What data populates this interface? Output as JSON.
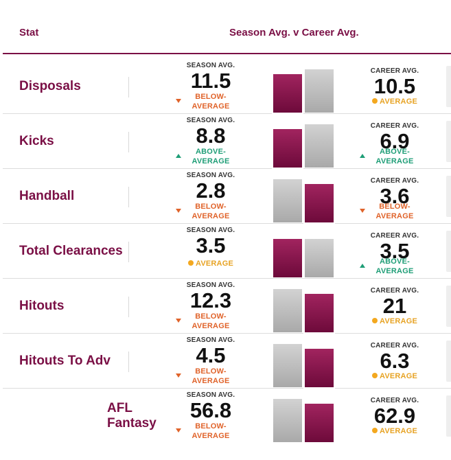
{
  "header": {
    "stat": "Stat",
    "compare": "Season Avg. v Career Avg."
  },
  "season_label": "SEASON AVG.",
  "career_label": "CAREER AVG.",
  "status_words": {
    "below": [
      "BELOW-",
      "AVERAGE"
    ],
    "above": [
      "ABOVE-",
      "AVERAGE"
    ],
    "average": "AVERAGE"
  },
  "colors": {
    "brand": "#7a0f45",
    "below": "#e0632a",
    "above": "#1f9e77",
    "average": "#e7a324",
    "bar_grey": "#b8b8b8"
  },
  "rows": [
    {
      "name": "Disposals",
      "season": "11.5",
      "season_status": "below",
      "career": "10.5",
      "career_status": "average",
      "season_bar": 0.8,
      "career_bar": 0.9
    },
    {
      "name": "Kicks",
      "season": "8.8",
      "season_status": "above",
      "career": "6.9",
      "career_status": "above",
      "season_bar": 0.8,
      "career_bar": 0.9
    },
    {
      "name": "Handball",
      "season": "2.8",
      "season_status": "below",
      "career": "3.6",
      "career_status": "below",
      "season_bar": 0.9,
      "career_bar": 0.8
    },
    {
      "name": "Total Clearances",
      "season": "3.5",
      "season_status": "average",
      "career": "3.5",
      "career_status": "above",
      "season_bar": 0.8,
      "career_bar": 0.8
    },
    {
      "name": "Hitouts",
      "season": "12.3",
      "season_status": "below",
      "career": "21",
      "career_status": "average",
      "season_bar": 0.9,
      "career_bar": 0.8
    },
    {
      "name": "Hitouts To Adv",
      "season": "4.5",
      "season_status": "below",
      "career": "6.3",
      "career_status": "average",
      "season_bar": 0.9,
      "career_bar": 0.8
    },
    {
      "name": "AFL Fantasy",
      "season": "56.8",
      "season_status": "below",
      "career": "62.9",
      "career_status": "average",
      "season_bar": 0.9,
      "career_bar": 0.8
    }
  ]
}
